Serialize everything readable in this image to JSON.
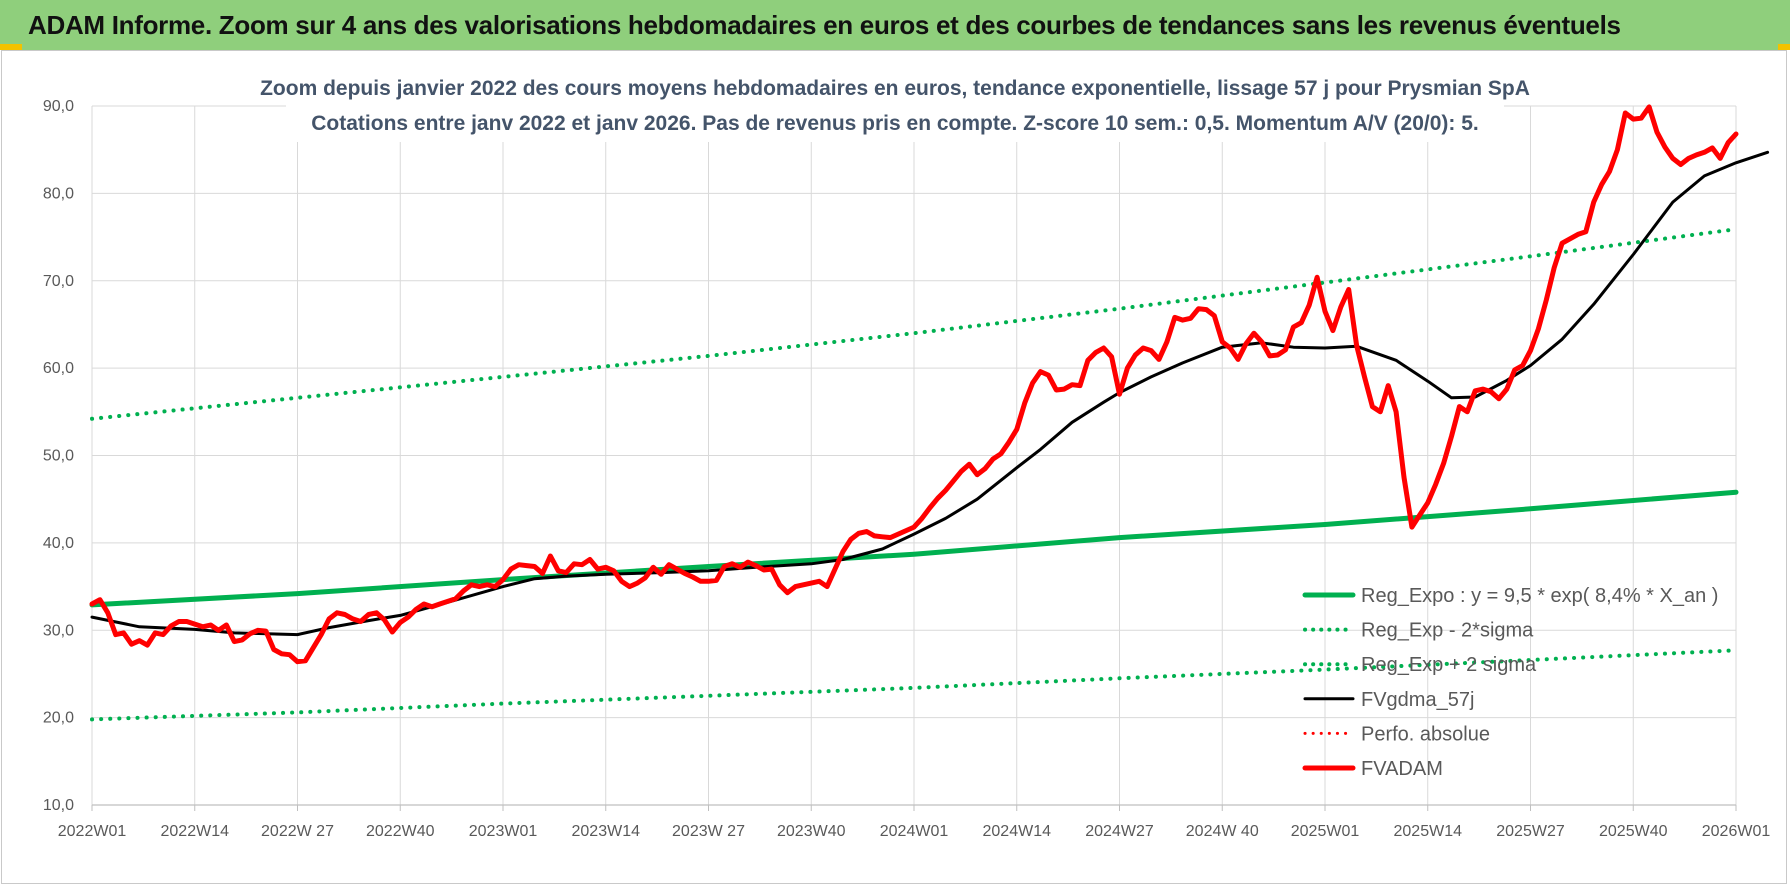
{
  "header": {
    "title": "ADAM Informe. Zoom sur 4 ans des valorisations hebdomadaires en euros et des courbes de tendances sans les revenus éventuels"
  },
  "chart_data": {
    "type": "line",
    "title": "Zoom depuis janvier 2022 des cours moyens hebdomadaires en euros, tendance exponentielle, lissage 57 j pour Prysmian SpA",
    "subtitle": "Cotations entre janv 2022 et janv 2026. Pas de revenus pris en compte. Z-score 10 sem.: 0,5. Momentum A/V (20/0): 5.",
    "xlabel": "",
    "ylabel": "",
    "ylim": [
      10,
      90
    ],
    "yticks": [
      "10,0",
      "20,0",
      "30,0",
      "40,0",
      "50,0",
      "60,0",
      "70,0",
      "80,0",
      "90,0"
    ],
    "xlim": [
      0,
      208
    ],
    "xticks": [
      {
        "x": 0,
        "label": "2022W01"
      },
      {
        "x": 13,
        "label": "2022W14"
      },
      {
        "x": 26,
        "label": "2022W 27"
      },
      {
        "x": 39,
        "label": "2022W40"
      },
      {
        "x": 52,
        "label": "2023W01"
      },
      {
        "x": 65,
        "label": "2023W14"
      },
      {
        "x": 78,
        "label": "2023W 27"
      },
      {
        "x": 91,
        "label": "2023W40"
      },
      {
        "x": 104,
        "label": "2024W01"
      },
      {
        "x": 117,
        "label": "2024W14"
      },
      {
        "x": 130,
        "label": "2024W27"
      },
      {
        "x": 143,
        "label": "2024W 40"
      },
      {
        "x": 156,
        "label": "2025W01"
      },
      {
        "x": 169,
        "label": "2025W14"
      },
      {
        "x": 182,
        "label": "2025W27"
      },
      {
        "x": 195,
        "label": "2025W40"
      },
      {
        "x": 208,
        "label": "2026W01"
      }
    ],
    "grid": true,
    "legend_position": "bottom-right",
    "series": [
      {
        "name": "Reg_Expo : y = 9,5 * exp( 8,4% *  X_an )",
        "color": "#00b050",
        "style": "solid",
        "width": 5,
        "points": [
          [
            0,
            32.9
          ],
          [
            26,
            34.2
          ],
          [
            52,
            35.8
          ],
          [
            78,
            37.3
          ],
          [
            104,
            38.7
          ],
          [
            130,
            40.6
          ],
          [
            156,
            42.1
          ],
          [
            182,
            43.9
          ],
          [
            208,
            45.8
          ]
        ]
      },
      {
        "name": "Reg_Exp - 2*sigma",
        "color": "#00b050",
        "style": "dotted",
        "width": 4,
        "points": [
          [
            0,
            19.8
          ],
          [
            26,
            20.6
          ],
          [
            52,
            21.6
          ],
          [
            78,
            22.5
          ],
          [
            104,
            23.4
          ],
          [
            130,
            24.5
          ],
          [
            156,
            25.5
          ],
          [
            182,
            26.6
          ],
          [
            208,
            27.7
          ]
        ]
      },
      {
        "name": "Reg_Exp + 2 sigma",
        "color": "#00b050",
        "style": "dotted",
        "width": 4,
        "points": [
          [
            0,
            54.2
          ],
          [
            26,
            56.6
          ],
          [
            52,
            59.0
          ],
          [
            78,
            61.4
          ],
          [
            104,
            64.0
          ],
          [
            130,
            66.8
          ],
          [
            156,
            69.8
          ],
          [
            182,
            72.8
          ],
          [
            208,
            75.9
          ]
        ]
      },
      {
        "name": "FVgdma_57j",
        "color": "#000000",
        "style": "solid",
        "width": 3,
        "points": [
          [
            0,
            31.5
          ],
          [
            6,
            30.4
          ],
          [
            13,
            30.1
          ],
          [
            18,
            29.7
          ],
          [
            26,
            29.5
          ],
          [
            30,
            30.3
          ],
          [
            35,
            31.1
          ],
          [
            39,
            31.7
          ],
          [
            45,
            33.2
          ],
          [
            52,
            35.0
          ],
          [
            56,
            35.9
          ],
          [
            60,
            36.2
          ],
          [
            65,
            36.4
          ],
          [
            72,
            36.6
          ],
          [
            78,
            36.8
          ],
          [
            84,
            37.2
          ],
          [
            91,
            37.6
          ],
          [
            95,
            38.1
          ],
          [
            100,
            39.3
          ],
          [
            104,
            41.0
          ],
          [
            108,
            42.8
          ],
          [
            112,
            45.0
          ],
          [
            117,
            48.6
          ],
          [
            120,
            50.7
          ],
          [
            124,
            53.8
          ],
          [
            128,
            56.1
          ],
          [
            130,
            57.2
          ],
          [
            134,
            59.0
          ],
          [
            138,
            60.6
          ],
          [
            143,
            62.4
          ],
          [
            148,
            62.9
          ],
          [
            152,
            62.4
          ],
          [
            156,
            62.3
          ],
          [
            160,
            62.5
          ],
          [
            165,
            60.9
          ],
          [
            169,
            58.5
          ],
          [
            172,
            56.6
          ],
          [
            175,
            56.7
          ],
          [
            179,
            58.6
          ],
          [
            182,
            60.3
          ],
          [
            186,
            63.3
          ],
          [
            190,
            67.3
          ],
          [
            195,
            73.0
          ],
          [
            200,
            79.0
          ],
          [
            204,
            82.0
          ],
          [
            208,
            83.5
          ],
          [
            212,
            84.7
          ]
        ]
      },
      {
        "name": "Perfo. absolue",
        "color": "#ff0000",
        "style": "dotted",
        "width": 3,
        "points": []
      },
      {
        "name": "FVADAM",
        "color": "#ff0000",
        "style": "solid",
        "width": 5,
        "points": [
          [
            0,
            33.0
          ],
          [
            1,
            33.5
          ],
          [
            2,
            32.0
          ],
          [
            3,
            29.5
          ],
          [
            4,
            29.7
          ],
          [
            5,
            28.4
          ],
          [
            6,
            28.8
          ],
          [
            7,
            28.3
          ],
          [
            8,
            29.7
          ],
          [
            9,
            29.5
          ],
          [
            10,
            30.5
          ],
          [
            11,
            31.0
          ],
          [
            12,
            31.0
          ],
          [
            13,
            30.7
          ],
          [
            14,
            30.4
          ],
          [
            15,
            30.6
          ],
          [
            16,
            30.0
          ],
          [
            17,
            30.6
          ],
          [
            18,
            28.7
          ],
          [
            19,
            28.9
          ],
          [
            20,
            29.6
          ],
          [
            21,
            30.0
          ],
          [
            22,
            29.9
          ],
          [
            23,
            27.8
          ],
          [
            24,
            27.3
          ],
          [
            25,
            27.2
          ],
          [
            26,
            26.4
          ],
          [
            27,
            26.5
          ],
          [
            28,
            28.0
          ],
          [
            29,
            29.5
          ],
          [
            30,
            31.3
          ],
          [
            31,
            32.0
          ],
          [
            32,
            31.8
          ],
          [
            33,
            31.3
          ],
          [
            34,
            31.0
          ],
          [
            35,
            31.8
          ],
          [
            36,
            32.0
          ],
          [
            37,
            31.2
          ],
          [
            38,
            29.8
          ],
          [
            39,
            30.9
          ],
          [
            40,
            31.5
          ],
          [
            41,
            32.4
          ],
          [
            42,
            33.0
          ],
          [
            43,
            32.7
          ],
          [
            44,
            33.0
          ],
          [
            45,
            33.3
          ],
          [
            46,
            33.6
          ],
          [
            47,
            34.5
          ],
          [
            48,
            35.2
          ],
          [
            49,
            35.0
          ],
          [
            50,
            35.2
          ],
          [
            51,
            35.0
          ],
          [
            52,
            35.8
          ],
          [
            53,
            37.0
          ],
          [
            54,
            37.5
          ],
          [
            55,
            37.4
          ],
          [
            56,
            37.3
          ],
          [
            57,
            36.5
          ],
          [
            58,
            38.5
          ],
          [
            59,
            36.8
          ],
          [
            60,
            36.6
          ],
          [
            61,
            37.6
          ],
          [
            62,
            37.5
          ],
          [
            63,
            38.1
          ],
          [
            64,
            37.0
          ],
          [
            65,
            37.2
          ],
          [
            66,
            36.8
          ],
          [
            67,
            35.6
          ],
          [
            68,
            35.0
          ],
          [
            69,
            35.4
          ],
          [
            70,
            36.0
          ],
          [
            71,
            37.2
          ],
          [
            72,
            36.4
          ],
          [
            73,
            37.5
          ],
          [
            74,
            37.0
          ],
          [
            75,
            36.5
          ],
          [
            76,
            36.1
          ],
          [
            77,
            35.6
          ],
          [
            78,
            35.6
          ],
          [
            79,
            35.7
          ],
          [
            80,
            37.3
          ],
          [
            81,
            37.6
          ],
          [
            82,
            37.2
          ],
          [
            83,
            37.8
          ],
          [
            84,
            37.4
          ],
          [
            85,
            36.9
          ],
          [
            86,
            37.0
          ],
          [
            87,
            35.2
          ],
          [
            88,
            34.3
          ],
          [
            89,
            35.0
          ],
          [
            90,
            35.2
          ],
          [
            91,
            35.4
          ],
          [
            92,
            35.6
          ],
          [
            93,
            35.0
          ],
          [
            94,
            37.0
          ],
          [
            95,
            39.0
          ],
          [
            96,
            40.4
          ],
          [
            97,
            41.1
          ],
          [
            98,
            41.3
          ],
          [
            99,
            40.8
          ],
          [
            100,
            40.7
          ],
          [
            101,
            40.6
          ],
          [
            102,
            41.0
          ],
          [
            103,
            41.4
          ],
          [
            104,
            41.8
          ],
          [
            105,
            42.8
          ],
          [
            106,
            44.0
          ],
          [
            107,
            45.1
          ],
          [
            108,
            46.0
          ],
          [
            109,
            47.1
          ],
          [
            110,
            48.2
          ],
          [
            111,
            49.0
          ],
          [
            112,
            47.8
          ],
          [
            113,
            48.5
          ],
          [
            114,
            49.6
          ],
          [
            115,
            50.2
          ],
          [
            116,
            51.5
          ],
          [
            117,
            53.0
          ],
          [
            118,
            56.0
          ],
          [
            119,
            58.3
          ],
          [
            120,
            59.6
          ],
          [
            121,
            59.2
          ],
          [
            122,
            57.5
          ],
          [
            123,
            57.6
          ],
          [
            124,
            58.1
          ],
          [
            125,
            58.0
          ],
          [
            126,
            60.9
          ],
          [
            127,
            61.8
          ],
          [
            128,
            62.3
          ],
          [
            129,
            61.3
          ],
          [
            130,
            57.0
          ],
          [
            131,
            60.0
          ],
          [
            132,
            61.5
          ],
          [
            133,
            62.3
          ],
          [
            134,
            62.0
          ],
          [
            135,
            61.0
          ],
          [
            136,
            63.0
          ],
          [
            137,
            65.8
          ],
          [
            138,
            65.5
          ],
          [
            139,
            65.7
          ],
          [
            140,
            66.8
          ],
          [
            141,
            66.7
          ],
          [
            142,
            66.0
          ],
          [
            143,
            63.0
          ],
          [
            144,
            62.3
          ],
          [
            145,
            61.0
          ],
          [
            146,
            62.8
          ],
          [
            147,
            64.0
          ],
          [
            148,
            63.0
          ],
          [
            149,
            61.4
          ],
          [
            150,
            61.5
          ],
          [
            151,
            62.1
          ],
          [
            152,
            64.7
          ],
          [
            153,
            65.2
          ],
          [
            154,
            67.2
          ],
          [
            155,
            70.4
          ],
          [
            156,
            66.5
          ],
          [
            157,
            64.3
          ],
          [
            158,
            67.0
          ],
          [
            159,
            69.0
          ],
          [
            160,
            62.6
          ],
          [
            161,
            59.0
          ],
          [
            162,
            55.6
          ],
          [
            163,
            55.0
          ],
          [
            164,
            58.0
          ],
          [
            165,
            55.0
          ],
          [
            166,
            47.5
          ],
          [
            167,
            41.8
          ],
          [
            168,
            43.2
          ],
          [
            169,
            44.6
          ],
          [
            170,
            46.7
          ],
          [
            171,
            49.1
          ],
          [
            172,
            52.2
          ],
          [
            173,
            55.6
          ],
          [
            174,
            55.0
          ],
          [
            175,
            57.4
          ],
          [
            176,
            57.6
          ],
          [
            177,
            57.3
          ],
          [
            178,
            56.5
          ],
          [
            179,
            57.6
          ],
          [
            180,
            59.8
          ],
          [
            181,
            60.3
          ],
          [
            182,
            62.0
          ],
          [
            183,
            64.5
          ],
          [
            184,
            67.8
          ],
          [
            185,
            71.5
          ],
          [
            186,
            74.3
          ],
          [
            187,
            74.8
          ],
          [
            188,
            75.3
          ],
          [
            189,
            75.6
          ],
          [
            190,
            79.0
          ],
          [
            191,
            81.0
          ],
          [
            192,
            82.5
          ],
          [
            193,
            85.0
          ],
          [
            194,
            89.2
          ],
          [
            195,
            88.5
          ],
          [
            196,
            88.6
          ],
          [
            197,
            89.9
          ],
          [
            198,
            87.0
          ],
          [
            199,
            85.3
          ],
          [
            200,
            84.0
          ],
          [
            201,
            83.3
          ],
          [
            202,
            84.0
          ],
          [
            203,
            84.4
          ],
          [
            204,
            84.7
          ],
          [
            205,
            85.2
          ],
          [
            206,
            84.0
          ],
          [
            207,
            85.8
          ],
          [
            208,
            86.8
          ]
        ]
      }
    ]
  }
}
